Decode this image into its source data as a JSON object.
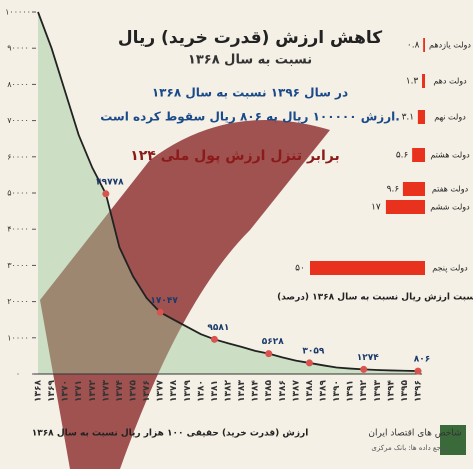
{
  "header": {
    "title": "کاهش ارزش (قدرت خرید) ریال",
    "subtitle": "نسبت به سال ۱۳۶۸",
    "note1": "در سال ۱۳۹۶ نسبت به سال ۱۳۶۸",
    "note2": "ارزش ۱۰۰۰۰۰ ریال به ۸۰۶ ریال سقوط کرده است.",
    "note3": "۱۲۴ برابر تنزل ارزش پول ملی"
  },
  "footer": {
    "source": "شاخص های اقتصاد ایران",
    "reference": "مرجع داده ها: بانک مرکزی"
  },
  "chart_data": [
    {
      "type": "line",
      "x_label": "ارزش (قدرت خرید) حقیقی ۱۰۰ هزار ریال نسبت به سال ۱۳۶۸",
      "categories": [
        "۱۳۶۸",
        "۱۳۶۹",
        "۱۳۷۰",
        "۱۳۷۱",
        "۱۳۷۲",
        "۱۳۷۳",
        "۱۳۷۴",
        "۱۳۷۵",
        "۱۳۷۶",
        "۱۳۷۷",
        "۱۳۷۸",
        "۱۳۷۹",
        "۱۳۸۰",
        "۱۳۸۱",
        "۱۳۸۲",
        "۱۳۸۳",
        "۱۳۸۴",
        "۱۳۸۵",
        "۱۳۸۶",
        "۱۳۸۷",
        "۱۳۸۸",
        "۱۳۸۹",
        "۱۳۹۰",
        "۱۳۹۱",
        "۱۳۹۲",
        "۱۳۹۳",
        "۱۳۹۴",
        "۱۳۹۵",
        "۱۳۹۶"
      ],
      "values": [
        100000,
        90000,
        78000,
        66000,
        57000,
        49778,
        35000,
        27000,
        21000,
        17047,
        15000,
        13000,
        11000,
        9581,
        8500,
        7500,
        6400,
        5628,
        4600,
        3700,
        3059,
        2400,
        1800,
        1500,
        1274,
        1100,
        980,
        890,
        806
      ],
      "value_labels": [
        null,
        null,
        null,
        null,
        null,
        "۴۹۷۷۸",
        null,
        null,
        null,
        "۱۷۰۴۷",
        null,
        null,
        null,
        "۹۵۸۱",
        null,
        null,
        null,
        "۵۶۲۸",
        null,
        null,
        "۳۰۵۹",
        null,
        null,
        null,
        "۱۲۷۴",
        null,
        null,
        null,
        "۸۰۶"
      ],
      "color": "#222222",
      "point_color": "#d9534f",
      "ylim": [
        0,
        100000
      ],
      "yticks": [
        {
          "value": 0,
          "label": "۰"
        },
        {
          "value": 10000,
          "label": "۱۰۰۰۰"
        },
        {
          "value": 20000,
          "label": "۲۰۰۰۰"
        },
        {
          "value": 30000,
          "label": "۳۰۰۰۰"
        },
        {
          "value": 40000,
          "label": "۴۰۰۰۰"
        },
        {
          "value": 50000,
          "label": "۵۰۰۰۰"
        },
        {
          "value": 60000,
          "label": "۶۰۰۰۰"
        },
        {
          "value": 70000,
          "label": "۷۰۰۰۰"
        },
        {
          "value": 80000,
          "label": "۸۰۰۰۰"
        },
        {
          "value": 90000,
          "label": "۹۰۰۰۰"
        },
        {
          "value": 100000,
          "label": "۱۰۰۰۰۰"
        }
      ]
    },
    {
      "type": "barh",
      "x_label": "نسبت ارزش ریال نسبت به سال ۱۳۶۸ (درصد)",
      "categories": [
        "دولت یازدهم",
        "دولت دهم",
        "دولت نهم",
        "دولت هشتم",
        "دولت هفتم",
        "دولت ششم",
        "دولت پنجم"
      ],
      "values": [
        0.8,
        1.3,
        3.1,
        5.6,
        9.6,
        17,
        50
      ],
      "value_labels": [
        "۰.۸",
        "۱.۳",
        "۳.۱",
        "۵.۶",
        "۹.۶",
        "۱۷",
        "۵۰"
      ],
      "color": "#e8321e"
    }
  ]
}
